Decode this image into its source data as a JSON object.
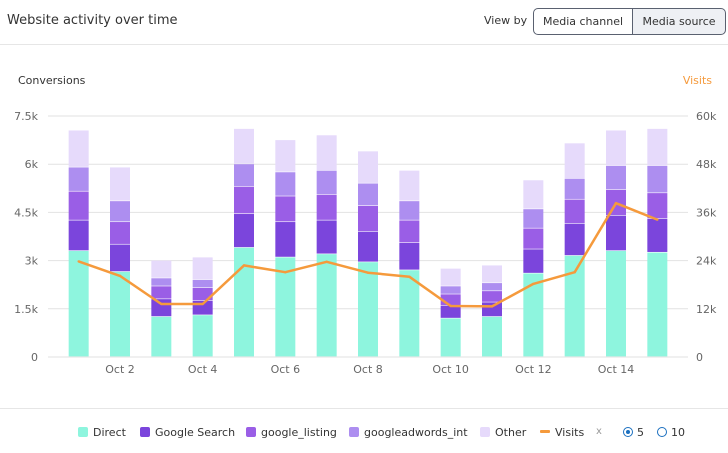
{
  "header": {
    "title": "Website activity over time",
    "view_by_label": "View by",
    "options": [
      "Media channel",
      "Media source"
    ],
    "selected": "Media source"
  },
  "colors": {
    "Direct": "#8ef5de",
    "Google Search": "#7b45dc",
    "google_listing": "#9a5ee6",
    "googleadwords_int": "#ad8ef0",
    "Other": "#e6dafb",
    "Visits": "#f59a3c",
    "grid": "#e2e2e2",
    "axis_text": "#666666",
    "visits_axis": "#f59a3c",
    "radio": "#1a6fbf"
  },
  "legend": {
    "items": [
      {
        "name": "Direct",
        "icon": "check-square-icon"
      },
      {
        "name": "Google Search",
        "icon": "check-square-icon"
      },
      {
        "name": "google_listing",
        "icon": "check-square-icon"
      },
      {
        "name": "googleadwords_int",
        "icon": "check-square-icon"
      },
      {
        "name": "Other",
        "icon": "check-square-icon"
      },
      {
        "name": "Visits",
        "icon": "line-swatch-icon"
      }
    ],
    "separator": "x",
    "top_options": [
      "5",
      "10"
    ],
    "top_selected": "5"
  },
  "chart_data": {
    "type": "bar",
    "stacked": true,
    "left_axis_label": "Conversions",
    "right_axis_label": "Visits",
    "left_ticks": [
      "0",
      "1.5k",
      "3k",
      "4.5k",
      "6k",
      "7.5k"
    ],
    "right_ticks": [
      "0",
      "12k",
      "24k",
      "36k",
      "48k",
      "60k"
    ],
    "ylim_left": [
      0,
      7500
    ],
    "ylim_right": [
      0,
      60000
    ],
    "x_tick_labels": [
      "Oct 2",
      "Oct 4",
      "Oct 6",
      "Oct 8",
      "Oct 10",
      "Oct 12",
      "Oct 14"
    ],
    "x_tick_label_index": [
      1,
      3,
      5,
      7,
      9,
      11,
      13
    ],
    "categories": [
      "Oct 1",
      "Oct 2",
      "Oct 3",
      "Oct 4",
      "Oct 5",
      "Oct 6",
      "Oct 7",
      "Oct 8",
      "Oct 9",
      "Oct 10",
      "Oct 11",
      "Oct 12",
      "Oct 13",
      "Oct 14",
      "Oct 15"
    ],
    "series": [
      {
        "name": "Direct",
        "values": [
          3300,
          2650,
          1250,
          1300,
          3400,
          3100,
          3200,
          2950,
          2700,
          1200,
          1250,
          2600,
          3150,
          3300,
          3250
        ]
      },
      {
        "name": "Google Search",
        "values": [
          950,
          850,
          550,
          450,
          1050,
          1100,
          1050,
          950,
          850,
          400,
          450,
          750,
          1000,
          1100,
          1050
        ]
      },
      {
        "name": "google_listing",
        "values": [
          900,
          700,
          400,
          400,
          850,
          800,
          800,
          800,
          700,
          350,
          350,
          650,
          750,
          800,
          800
        ]
      },
      {
        "name": "googleadwords_int",
        "values": [
          750,
          650,
          250,
          250,
          700,
          750,
          750,
          700,
          600,
          250,
          250,
          600,
          650,
          750,
          850
        ]
      },
      {
        "name": "Other",
        "values": [
          1150,
          1050,
          550,
          700,
          1100,
          1000,
          1100,
          1000,
          950,
          550,
          550,
          900,
          1100,
          1100,
          1150
        ]
      }
    ],
    "line_series": {
      "name": "Visits",
      "axis": "right",
      "values": [
        23800,
        20200,
        13200,
        13200,
        22800,
        21100,
        23700,
        21000,
        20000,
        12700,
        12600,
        18200,
        21100,
        38300,
        34200
      ]
    }
  }
}
